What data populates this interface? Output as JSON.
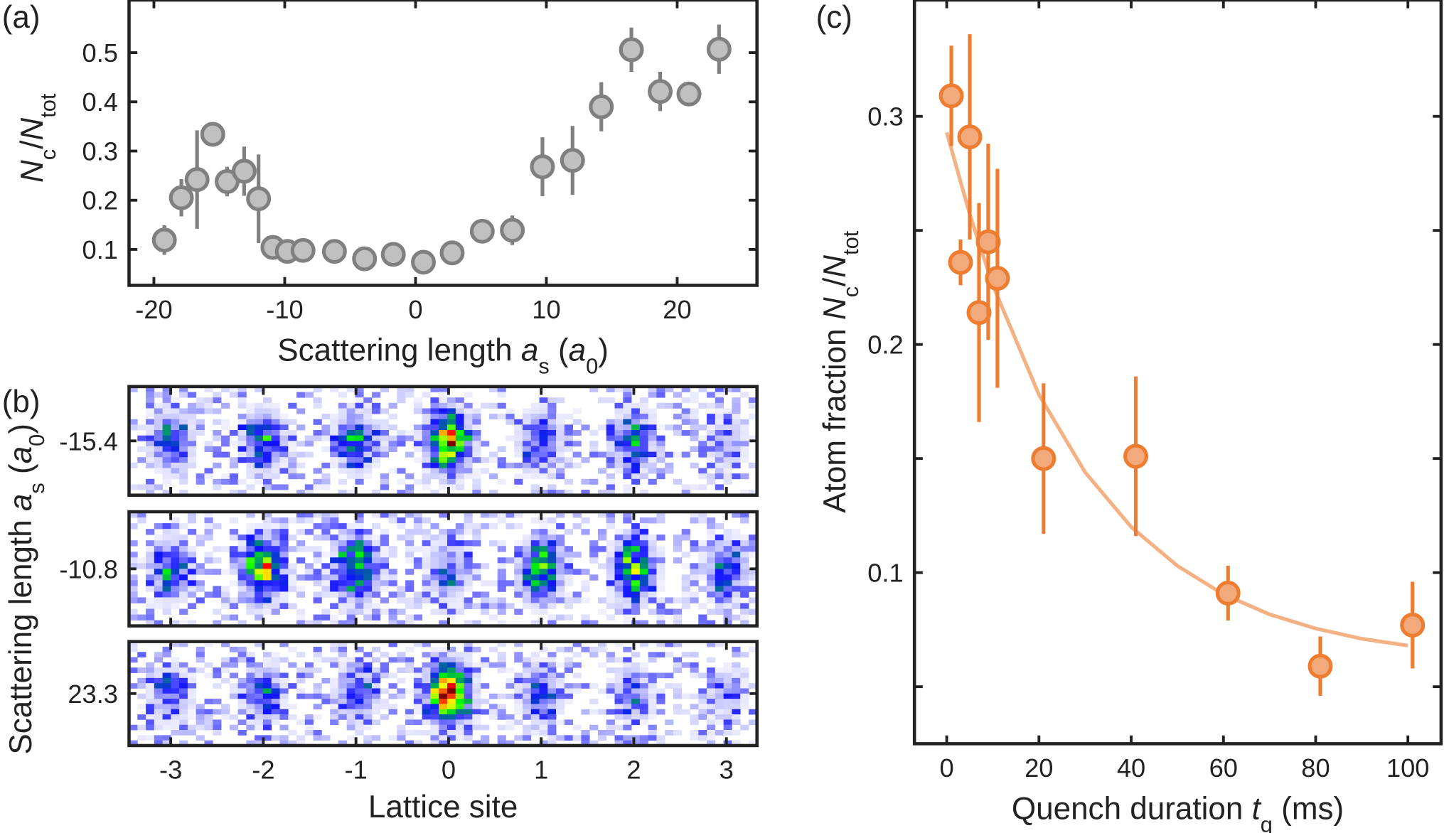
{
  "panel_labels": {
    "a": "(a)",
    "b": "(b)",
    "c": "(c)"
  },
  "colors": {
    "axis": "#222222",
    "gray_fill": "#c0c0c0",
    "gray_edge": "#808080",
    "orange_fill": "#f2a97c",
    "orange_edge": "#ed7d31",
    "fit": "#f4b183"
  },
  "chart_data": [
    {
      "id": "a",
      "type": "scatter",
      "xlabel": [
        {
          "t": "Scattering length "
        },
        {
          "t": "a",
          "i": true
        },
        {
          "t": "s",
          "sub": true
        },
        {
          "t": " ("
        },
        {
          "t": "a",
          "i": true
        },
        {
          "t": "0",
          "sub": true
        },
        {
          "t": ")"
        }
      ],
      "ylabel": [
        {
          "t": "N",
          "i": true
        },
        {
          "t": "c",
          "sub": true
        },
        {
          "t": "/"
        },
        {
          "t": "N",
          "i": true
        },
        {
          "t": "tot",
          "sub": true
        }
      ],
      "xlim": [
        -21.9,
        26.1
      ],
      "ylim": [
        0.027,
        0.607
      ],
      "xticks": [
        -20,
        -10,
        0,
        10,
        20
      ],
      "xticklabels": [
        "-20",
        "-10",
        "0",
        "10",
        "20"
      ],
      "yticks": [
        0.1,
        0.2,
        0.3,
        0.4,
        0.5
      ],
      "yticklabels": [
        "0.1",
        "0.2",
        "0.3",
        "0.4",
        "0.5"
      ],
      "grid": false,
      "x": [
        -19.2,
        -17.9,
        -16.7,
        -15.5,
        -14.4,
        -13.1,
        -12.0,
        -10.9,
        -9.8,
        -8.6,
        -6.2,
        -3.9,
        -1.7,
        0.6,
        2.8,
        5.1,
        7.4,
        9.7,
        12.0,
        14.2,
        16.5,
        18.7,
        20.9,
        23.2
      ],
      "y": [
        0.119,
        0.205,
        0.242,
        0.334,
        0.238,
        0.259,
        0.203,
        0.104,
        0.096,
        0.098,
        0.096,
        0.081,
        0.09,
        0.074,
        0.093,
        0.137,
        0.139,
        0.268,
        0.281,
        0.39,
        0.506,
        0.421,
        0.416,
        0.507
      ],
      "err": [
        0.03,
        0.038,
        0.1,
        0.0,
        0.03,
        0.05,
        0.09,
        0.0,
        0.0,
        0.0,
        0.0,
        0.0,
        0.0,
        0.0,
        0.0,
        0.0,
        0.03,
        0.06,
        0.07,
        0.05,
        0.045,
        0.04,
        0.0,
        0.05
      ]
    },
    {
      "id": "b",
      "type": "heatmap",
      "xlabel": [
        {
          "t": "Lattice site"
        }
      ],
      "ylabel": [
        {
          "t": "Scattering length "
        },
        {
          "t": "a",
          "i": true
        },
        {
          "t": "s",
          "sub": true
        },
        {
          "t": " ("
        },
        {
          "t": "a",
          "i": true
        },
        {
          "t": "0",
          "sub": true
        },
        {
          "t": ")"
        }
      ],
      "xlim": [
        -3.45,
        3.33
      ],
      "xticks": [
        -3,
        -2,
        -1,
        0,
        1,
        2,
        3
      ],
      "xticklabels": [
        "-3",
        "-2",
        "-1",
        "0",
        "1",
        "2",
        "3"
      ],
      "colormap": [
        "#ffffff",
        "#c8c8ff",
        "#1010ff",
        "#008080",
        "#00ff00",
        "#ffff00",
        "#ff8000",
        "#ff0000",
        "#800000"
      ],
      "rows": [
        {
          "label": "-15.4",
          "site_intensity": [
            0.35,
            0.4,
            0.35,
            0.78,
            0.3,
            0.35,
            0.15
          ]
        },
        {
          "label": "-10.8",
          "site_intensity": [
            0.35,
            0.6,
            0.55,
            0.25,
            0.5,
            0.55,
            0.3
          ]
        },
        {
          "label": "23.3",
          "site_intensity": [
            0.25,
            0.3,
            0.3,
            1.0,
            0.3,
            0.2,
            0.15
          ]
        }
      ]
    },
    {
      "id": "c",
      "type": "scatter",
      "xlabel": [
        {
          "t": "Quench duration "
        },
        {
          "t": "t",
          "i": true
        },
        {
          "t": "q",
          "sub": true
        },
        {
          "t": " (ms)"
        }
      ],
      "ylabel": [
        {
          "t": "Atom fraction "
        },
        {
          "t": "N",
          "i": true
        },
        {
          "t": "c",
          "sub": true
        },
        {
          "t": "/"
        },
        {
          "t": "N",
          "i": true
        },
        {
          "t": "tot",
          "sub": true
        }
      ],
      "xlim": [
        -7,
        107.2
      ],
      "ylim": [
        0.025,
        0.351
      ],
      "xticks": [
        0,
        20,
        40,
        60,
        80,
        100
      ],
      "xticklabels": [
        "0",
        "20",
        "40",
        "60",
        "80",
        "100"
      ],
      "yticks": [
        0.05,
        0.1,
        0.15,
        0.2,
        0.25,
        0.3
      ],
      "yticklabels": [
        "",
        "0.1",
        "",
        "0.2",
        "",
        "0.3"
      ],
      "grid": false,
      "x": [
        1,
        5,
        3,
        7,
        9,
        11,
        21,
        41,
        61,
        81,
        101
      ],
      "y": [
        0.309,
        0.291,
        0.236,
        0.214,
        0.245,
        0.229,
        0.15,
        0.151,
        0.091,
        0.059,
        0.077
      ],
      "err": [
        0.022,
        0.045,
        0.01,
        0.048,
        0.043,
        0.048,
        0.033,
        0.035,
        0.012,
        0.013,
        0.019
      ],
      "fit": {
        "x": [
          0,
          5,
          10,
          20,
          30,
          40,
          50,
          60,
          70,
          80,
          90,
          100
        ],
        "y": [
          0.293,
          0.257,
          0.226,
          0.178,
          0.144,
          0.12,
          0.103,
          0.0905,
          0.0817,
          0.0755,
          0.071,
          0.068
        ]
      }
    }
  ]
}
